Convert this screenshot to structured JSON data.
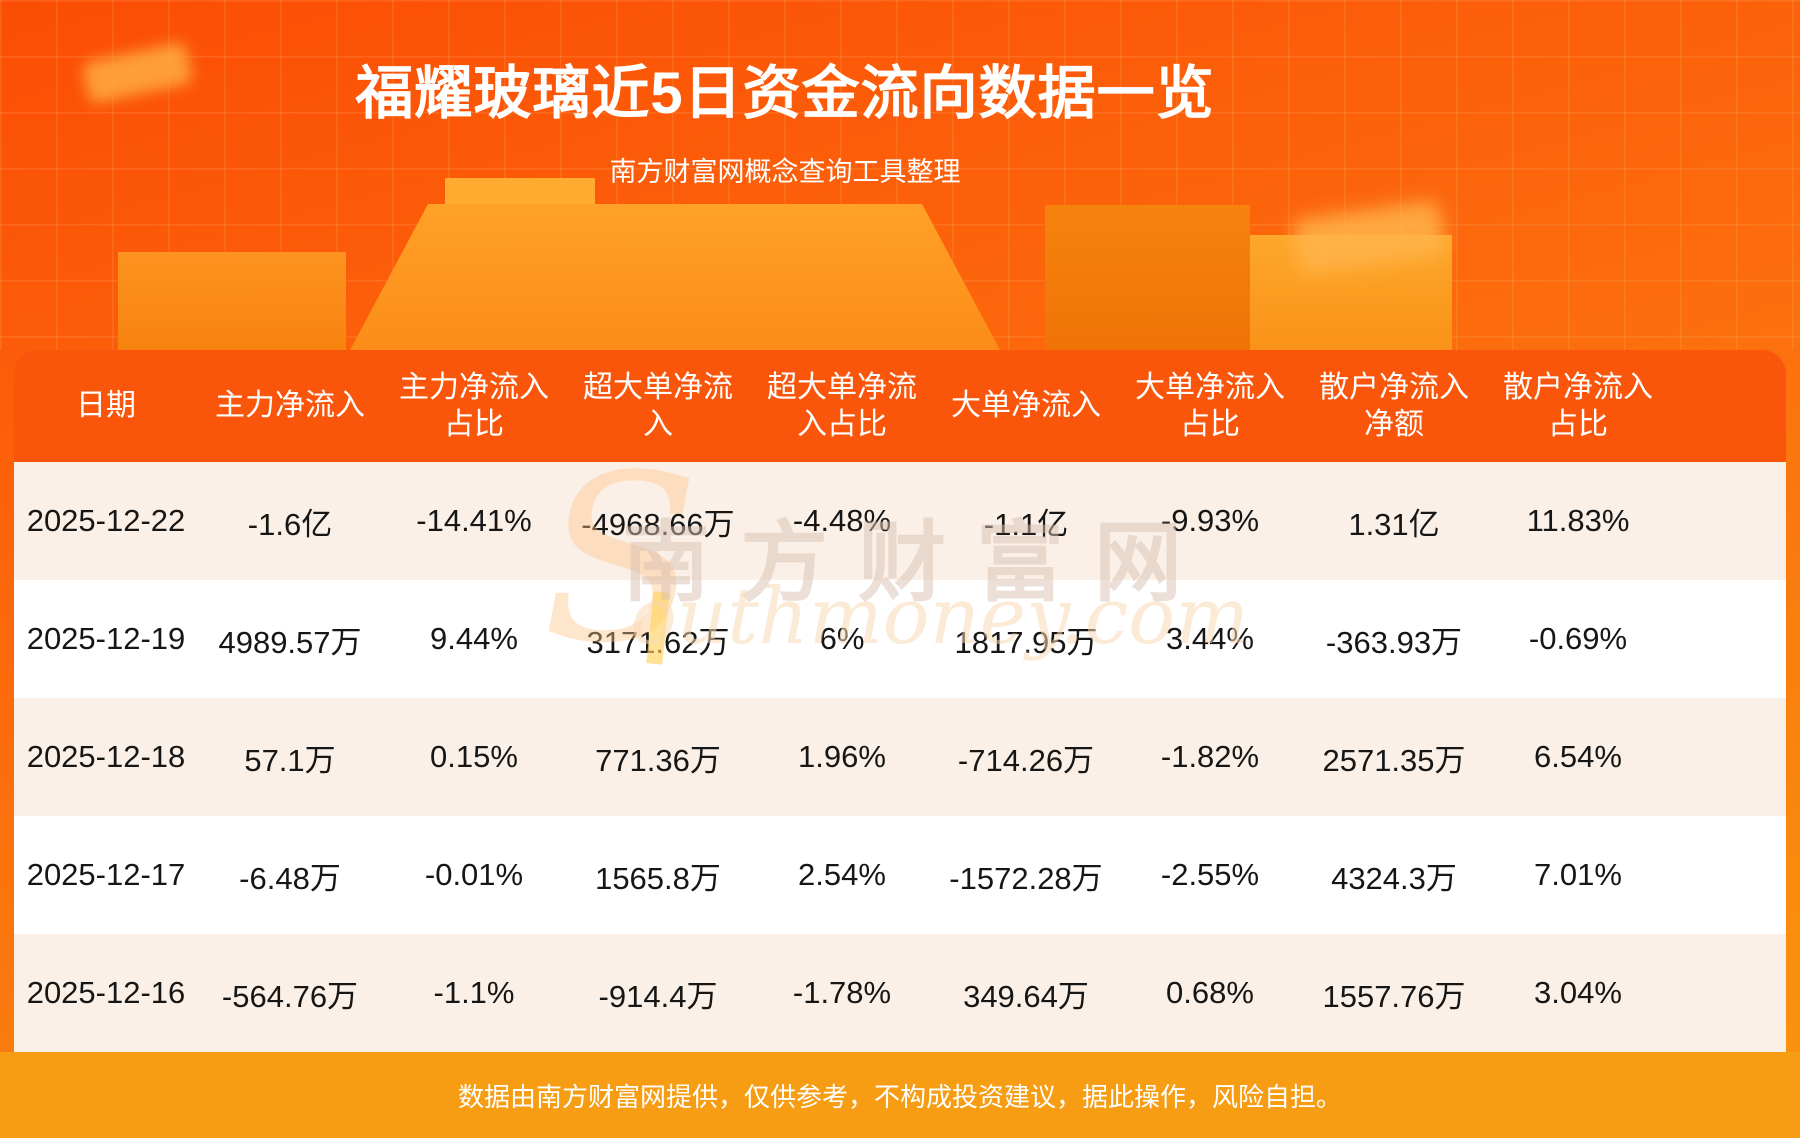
{
  "page": {
    "title": "福耀玻璃近5日资金流向数据一览",
    "subtitle": "南方财富网概念查询工具整理",
    "footer": "数据由南方财富网提供，仅供参考，不构成投资建议，据此操作，风险自担。"
  },
  "watermark": {
    "big_letter": "S",
    "cn": "南方财富网",
    "en": "outhmoney.com"
  },
  "colors": {
    "hero_top": "#fb4d05",
    "hero_bottom": "#f9960f",
    "header_bg": "#fa560b",
    "row_cream": "#fbf0e7",
    "row_white": "#ffffff",
    "footer_band": "#f79d13",
    "title_text": "#ffffff",
    "body_text": "#161616"
  },
  "table": {
    "column_keys": [
      "date",
      "main-net-inflow",
      "main-net-inflow-pct",
      "xl-order-net-inflow",
      "xl-order-net-inflow-pct",
      "large-order-net-inflow",
      "large-order-net-inflow-pct",
      "retail-net-inflow",
      "retail-net-inflow-pct"
    ],
    "header_display": [
      "日期",
      "主力净流入",
      "主力净流入\n占比",
      "超大单净流\n入",
      "超大单净流\n入占比",
      "大单净流入",
      "大单净流入\n占比",
      "散户净流入\n净额",
      "散户净流入\n占比"
    ]
  },
  "chart_data": {
    "type": "table",
    "title": "福耀玻璃近5日资金流向数据一览",
    "subtitle": "南方财富网概念查询工具整理",
    "columns": [
      "日期",
      "主力净流入",
      "主力净流入占比",
      "超大单净流入",
      "超大单净流入占比",
      "大单净流入",
      "大单净流入占比",
      "散户净流入净额",
      "散户净流入占比"
    ],
    "rows": [
      [
        "2025-12-22",
        "-1.6亿",
        "-14.41%",
        "-4968.66万",
        "-4.48%",
        "-1.1亿",
        "-9.93%",
        "1.31亿",
        "11.83%"
      ],
      [
        "2025-12-19",
        "4989.57万",
        "9.44%",
        "3171.62万",
        "6%",
        "1817.95万",
        "3.44%",
        "-363.93万",
        "-0.69%"
      ],
      [
        "2025-12-18",
        "57.1万",
        "0.15%",
        "771.36万",
        "1.96%",
        "-714.26万",
        "-1.82%",
        "2571.35万",
        "6.54%"
      ],
      [
        "2025-12-17",
        "-6.48万",
        "-0.01%",
        "1565.8万",
        "2.54%",
        "-1572.28万",
        "-2.55%",
        "4324.3万",
        "7.01%"
      ],
      [
        "2025-12-16",
        "-564.76万",
        "-1.1%",
        "-914.4万",
        "-1.78%",
        "349.64万",
        "0.68%",
        "1557.76万",
        "3.04%"
      ]
    ],
    "footnote": "数据由南方财富网提供，仅供参考，不构成投资建议，据此操作，风险自担。"
  }
}
